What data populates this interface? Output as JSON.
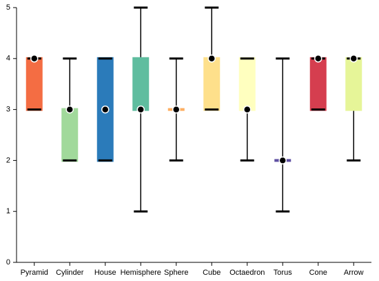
{
  "chart_data": {
    "type": "boxplot",
    "categories": [
      "Pyramid",
      "Cylinder",
      "House",
      "Hemisphere",
      "Sphere",
      "Cube",
      "Octaedron",
      "Torus",
      "Cone",
      "Arrow"
    ],
    "min": [
      3,
      2,
      2,
      1,
      2,
      3,
      2,
      1,
      3,
      2
    ],
    "q1": [
      3,
      2,
      2,
      3,
      3,
      3,
      3,
      2,
      3,
      3
    ],
    "median": [
      4,
      3,
      3,
      3,
      3,
      4,
      3,
      2,
      4,
      4
    ],
    "q3": [
      4,
      3,
      4,
      4,
      3,
      4,
      4,
      2,
      4,
      4
    ],
    "max": [
      4,
      4,
      4,
      5,
      4,
      5,
      4,
      4,
      4,
      4
    ],
    "colors": [
      "#f46d43",
      "#a1d99b",
      "#2b7bba",
      "#5fbd9f",
      "#fdae61",
      "#fee08b",
      "#ffffbf",
      "#5e4fa2",
      "#d53e4f",
      "#e6f598"
    ],
    "ylim": [
      0,
      5
    ],
    "yticks": [
      0,
      1,
      2,
      3,
      4,
      5
    ]
  }
}
